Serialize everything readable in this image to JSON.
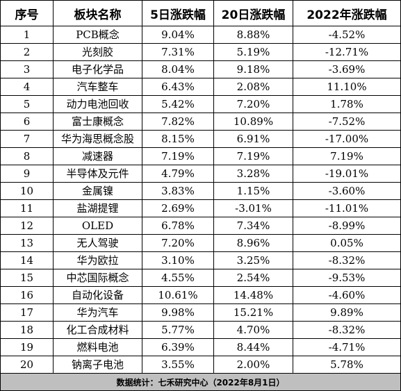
{
  "headers": [
    "序号",
    "板块名称",
    "5日涨跌幅",
    "20日涨跌幅",
    "2022年涨跌幅"
  ],
  "rows": [
    [
      "1",
      "PCB概念",
      "9.04%",
      "8.88%",
      "-4.52%"
    ],
    [
      "2",
      "光刻胶",
      "7.31%",
      "5.19%",
      "-12.71%"
    ],
    [
      "3",
      "电子化学品",
      "8.04%",
      "9.18%",
      "-3.69%"
    ],
    [
      "4",
      "汽车整车",
      "6.43%",
      "2.08%",
      "11.10%"
    ],
    [
      "5",
      "动力电池回收",
      "5.42%",
      "7.20%",
      "1.78%"
    ],
    [
      "6",
      "富士康概念",
      "7.82%",
      "10.89%",
      "-7.52%"
    ],
    [
      "7",
      "华为海思概念股",
      "8.15%",
      "6.91%",
      "-17.00%"
    ],
    [
      "8",
      "减速器",
      "7.19%",
      "7.19%",
      "7.19%"
    ],
    [
      "9",
      "半导体及元件",
      "4.79%",
      "3.28%",
      "-19.01%"
    ],
    [
      "10",
      "金属镍",
      "3.83%",
      "1.15%",
      "-3.60%"
    ],
    [
      "11",
      "盐湖提锂",
      "2.69%",
      "-3.01%",
      "-11.01%"
    ],
    [
      "12",
      "OLED",
      "6.78%",
      "7.34%",
      "-8.99%"
    ],
    [
      "13",
      "无人驾驶",
      "7.20%",
      "8.96%",
      "0.05%"
    ],
    [
      "14",
      "华为欧拉",
      "3.10%",
      "3.25%",
      "-8.32%"
    ],
    [
      "15",
      "中芯国际概念",
      "4.55%",
      "2.54%",
      "-9.53%"
    ],
    [
      "16",
      "自动化设备",
      "10.61%",
      "14.48%",
      "-4.60%"
    ],
    [
      "17",
      "华为汽车",
      "9.98%",
      "15.21%",
      "9.89%"
    ],
    [
      "18",
      "化工合成材料",
      "5.77%",
      "4.70%",
      "-8.32%"
    ],
    [
      "19",
      "燃料电池",
      "6.39%",
      "8.44%",
      "-4.71%"
    ],
    [
      "20",
      "钠离子电池",
      "3.55%",
      "2.00%",
      "5.78%"
    ]
  ],
  "footer": "数据统计：七禾研究中心（2022年8月1日）"
}
